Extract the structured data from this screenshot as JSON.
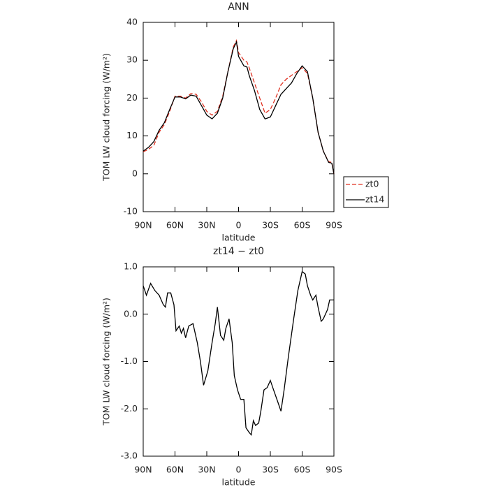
{
  "chart_data": [
    {
      "type": "line",
      "title": "ANN",
      "xlabel": "latitude",
      "ylabel": "TOM LW cloud forcing (W/m²)",
      "x": [
        90,
        85,
        80,
        75,
        70,
        65,
        60,
        55,
        50,
        45,
        40,
        35,
        30,
        25,
        20,
        15,
        10,
        5,
        2,
        0,
        -5,
        -8,
        -10,
        -15,
        -20,
        -25,
        -30,
        -35,
        -40,
        -45,
        -50,
        -55,
        -60,
        -65,
        -70,
        -75,
        -80,
        -85,
        -88,
        -90
      ],
      "series": [
        {
          "name": "zt0",
          "color": "#e03020",
          "dash": true,
          "values": [
            5.8,
            6.5,
            7.5,
            11,
            13,
            16.5,
            20.5,
            20.5,
            20,
            21.2,
            21,
            19,
            16.5,
            15.5,
            16.5,
            20.5,
            27,
            33.5,
            35.2,
            32,
            30,
            29.5,
            28,
            24,
            20,
            16,
            17,
            20,
            23.5,
            25,
            26,
            27,
            28,
            26.5,
            20,
            11,
            6,
            3.2,
            3,
            0
          ]
        },
        {
          "name": "zt14",
          "color": "#000000",
          "dash": false,
          "values": [
            6,
            7,
            8.5,
            11.5,
            13.5,
            17,
            20.3,
            20.3,
            19.8,
            20.8,
            20.5,
            18,
            15.5,
            14.5,
            16,
            20,
            27,
            33,
            34.8,
            31,
            28.5,
            28.2,
            26,
            22,
            17,
            14.5,
            15,
            18,
            21,
            22.5,
            24,
            26.5,
            28.5,
            27,
            20,
            11,
            6,
            3,
            2.8,
            0
          ]
        }
      ],
      "xlim": [
        90,
        -90
      ],
      "xticks": [
        {
          "value": 90,
          "label": "90N"
        },
        {
          "value": 60,
          "label": "60N"
        },
        {
          "value": 30,
          "label": "30N"
        },
        0,
        {
          "value": -30,
          "label": "30S"
        },
        {
          "value": -60,
          "label": "60S"
        },
        {
          "value": -90,
          "label": "90S"
        }
      ],
      "ylim": [
        -10,
        40
      ],
      "yticks": [
        -10,
        0,
        10,
        20,
        30,
        40
      ],
      "legend": "right"
    },
    {
      "type": "line",
      "title": "zt14 − zt0",
      "xlabel": "latitude",
      "ylabel": "TOM LW cloud forcing (W/m²)",
      "x": [
        90,
        87,
        83,
        79,
        75,
        71,
        69,
        67,
        64,
        61,
        59,
        56,
        54,
        52,
        50,
        47,
        43,
        39,
        36,
        33,
        29,
        25,
        22,
        20,
        17,
        14,
        12,
        9,
        6,
        4,
        1,
        -2,
        -5,
        -7,
        -10,
        -12,
        -14,
        -16,
        -19,
        -21,
        -24,
        -27,
        -30,
        -33,
        -37,
        -40,
        -43,
        -47,
        -52,
        -56,
        -60,
        -63,
        -65,
        -68,
        -70,
        -73,
        -75,
        -78,
        -80,
        -84,
        -86,
        -90
      ],
      "series": [
        {
          "color": "#000000",
          "dash": false,
          "values": [
            0.6,
            0.4,
            0.65,
            0.5,
            0.4,
            0.2,
            0.15,
            0.45,
            0.45,
            0.2,
            -0.35,
            -0.25,
            -0.4,
            -0.3,
            -0.5,
            -0.25,
            -0.2,
            -0.6,
            -1.0,
            -1.5,
            -1.2,
            -0.6,
            -0.2,
            0.15,
            -0.45,
            -0.55,
            -0.3,
            -0.1,
            -0.6,
            -1.3,
            -1.6,
            -1.8,
            -1.8,
            -2.4,
            -2.5,
            -2.55,
            -2.25,
            -2.35,
            -2.3,
            -2.05,
            -1.6,
            -1.55,
            -1.4,
            -1.6,
            -1.85,
            -2.05,
            -1.6,
            -0.9,
            -0.1,
            0.5,
            0.9,
            0.85,
            0.6,
            0.4,
            0.3,
            0.4,
            0.15,
            -0.15,
            -0.1,
            0.1,
            0.3,
            0.3
          ]
        }
      ],
      "xlim": [
        90,
        -90
      ],
      "xticks": [
        {
          "value": 90,
          "label": "90N"
        },
        {
          "value": 60,
          "label": "60N"
        },
        {
          "value": 30,
          "label": "30N"
        },
        0,
        {
          "value": -30,
          "label": "30S"
        },
        {
          "value": -60,
          "label": "60S"
        },
        {
          "value": -90,
          "label": "90S"
        }
      ],
      "ylim": [
        -3,
        1
      ],
      "yticks": [
        {
          "value": -3,
          "label": "-3.0"
        },
        {
          "value": -2,
          "label": "-2.0"
        },
        {
          "value": -1,
          "label": "-1.0"
        },
        {
          "value": 0,
          "label": "0.0"
        },
        {
          "value": 1,
          "label": "1.0"
        }
      ]
    }
  ]
}
